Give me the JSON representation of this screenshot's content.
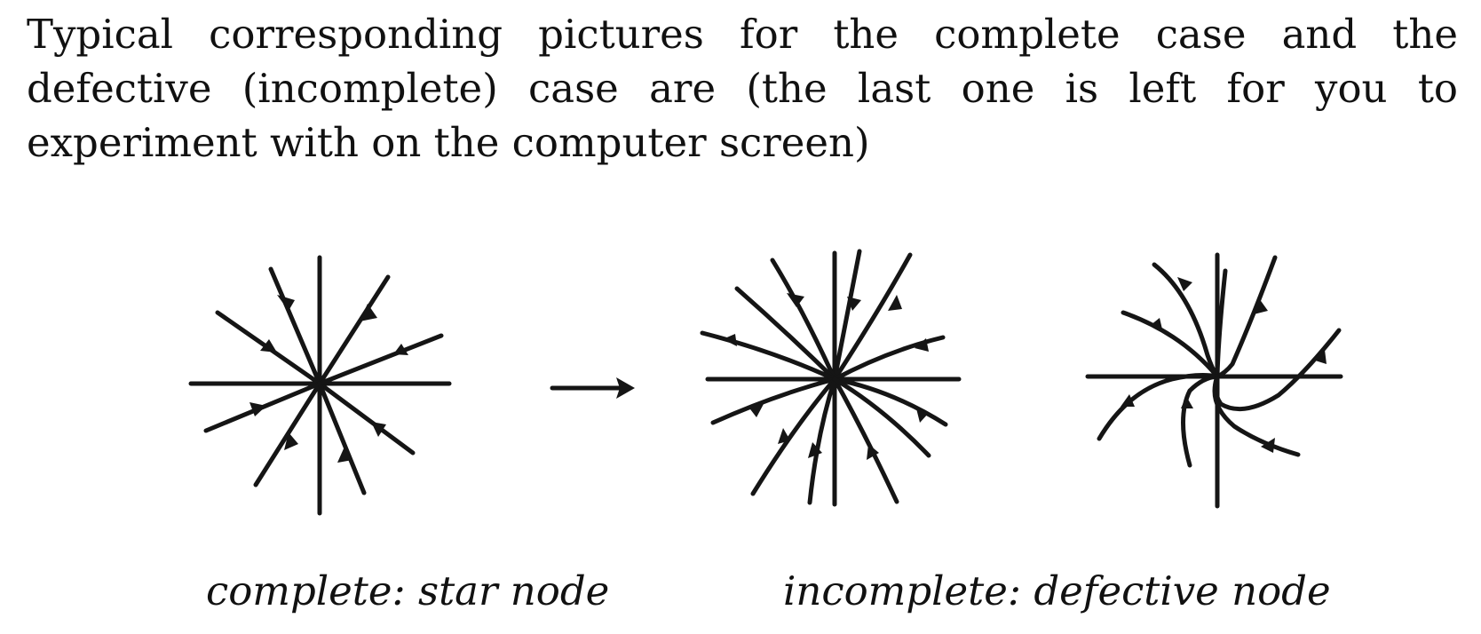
{
  "paragraph": "Typical corresponding pictures for the complete case and the defective (incomplete) case are (the last one is left for you to experiment with on the computer screen)",
  "captions": {
    "left": "complete: star node",
    "right": "incomplete: defective node"
  }
}
